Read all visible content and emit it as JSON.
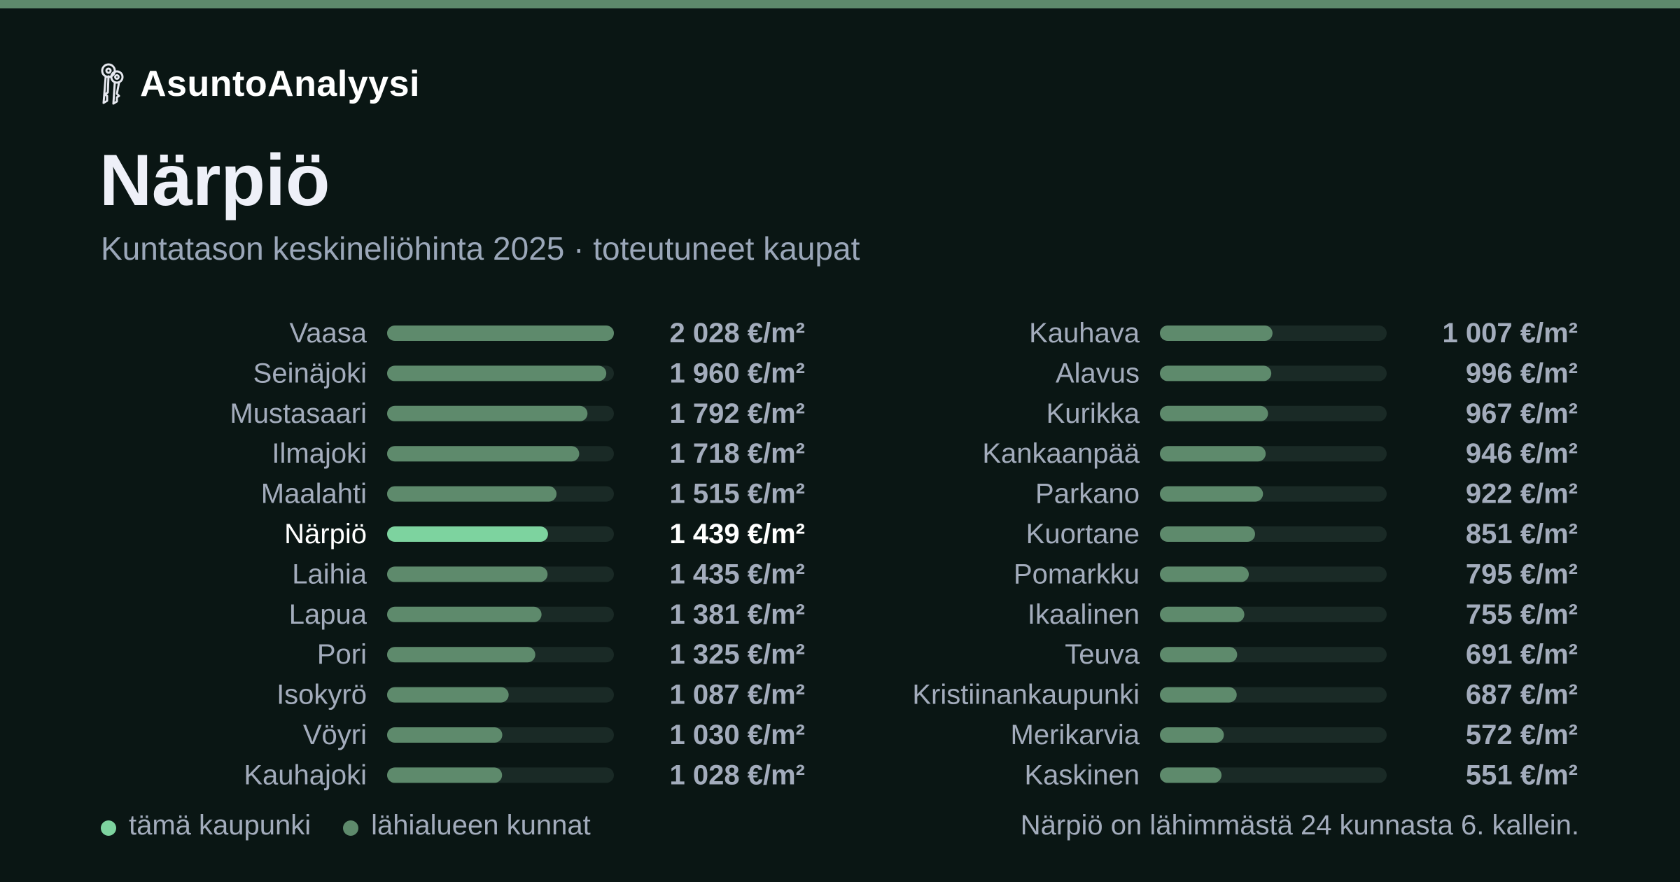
{
  "brand": {
    "name": "AsuntoAnalyysi",
    "icon": "keys-icon"
  },
  "header": {
    "title": "Närpiö",
    "subtitle": "Kuntatason keskineliöhinta 2025 · toteutuneet kaupat"
  },
  "legend": {
    "highlight_label": "tämä kaupunki",
    "others_label": "lähialueen kunnat"
  },
  "footer": {
    "note": "Närpiö on lähimmästä 24 kunnasta 6. kallein."
  },
  "colors": {
    "background": "#0a1614",
    "accent_stripe": "#5e8a6c",
    "highlight_bar": "#7dd39f",
    "bar": "#5e8a6c",
    "track": "#1a2a26",
    "label": "#a3acbc",
    "highlight_label": "#ffffff",
    "title": "#eef0f8"
  },
  "chart_data": {
    "type": "bar",
    "orientation": "horizontal",
    "unit": "€/m²",
    "scale_max": 2028,
    "highlight": "Närpiö",
    "legend_position": "bottom-left",
    "grid": false,
    "columns": [
      {
        "categories": [
          "Vaasa",
          "Seinäjoki",
          "Mustasaari",
          "Ilmajoki",
          "Maalahti",
          "Närpiö",
          "Laihia",
          "Lapua",
          "Pori",
          "Isokyrö",
          "Vöyri",
          "Kauhajoki"
        ],
        "values": [
          2028,
          1960,
          1792,
          1718,
          1515,
          1439,
          1435,
          1381,
          1325,
          1087,
          1030,
          1028
        ],
        "value_labels": [
          "2 028 €/m²",
          "1 960 €/m²",
          "1 792 €/m²",
          "1 718 €/m²",
          "1 515 €/m²",
          "1 439 €/m²",
          "1 435 €/m²",
          "1 381 €/m²",
          "1 325 €/m²",
          "1 087 €/m²",
          "1 030 €/m²",
          "1 028 €/m²"
        ]
      },
      {
        "categories": [
          "Kauhava",
          "Alavus",
          "Kurikka",
          "Kankaanpää",
          "Parkano",
          "Kuortane",
          "Pomarkku",
          "Ikaalinen",
          "Teuva",
          "Kristiinankaupunki",
          "Merikarvia",
          "Kaskinen"
        ],
        "values": [
          1007,
          996,
          967,
          946,
          922,
          851,
          795,
          755,
          691,
          687,
          572,
          551
        ],
        "value_labels": [
          "1 007 €/m²",
          "996 €/m²",
          "967 €/m²",
          "946 €/m²",
          "922 €/m²",
          "851 €/m²",
          "795 €/m²",
          "755 €/m²",
          "691 €/m²",
          "687 €/m²",
          "572 €/m²",
          "551 €/m²"
        ]
      }
    ]
  }
}
